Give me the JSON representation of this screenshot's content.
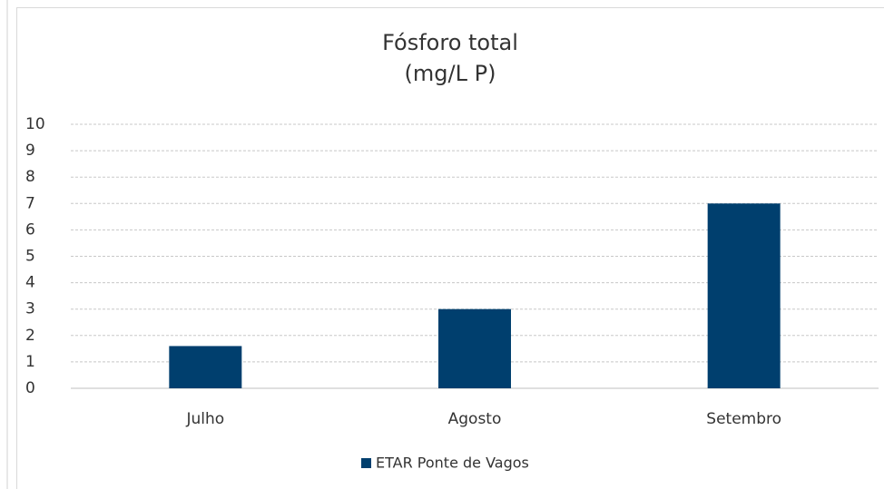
{
  "chart_data": {
    "type": "bar",
    "title": "Fósforo total",
    "subtitle": "(mg/L P)",
    "categories": [
      "Julho",
      "Agosto",
      "Setembro"
    ],
    "series": [
      {
        "name": "ETAR Ponte de Vagos",
        "color": "#003f6e",
        "values": [
          1.6,
          3,
          7
        ]
      }
    ],
    "ylim": [
      0,
      10
    ],
    "yticks": [
      0,
      1,
      2,
      3,
      4,
      5,
      6,
      7,
      8,
      9,
      10
    ],
    "grid": true,
    "legend": "bottom"
  }
}
